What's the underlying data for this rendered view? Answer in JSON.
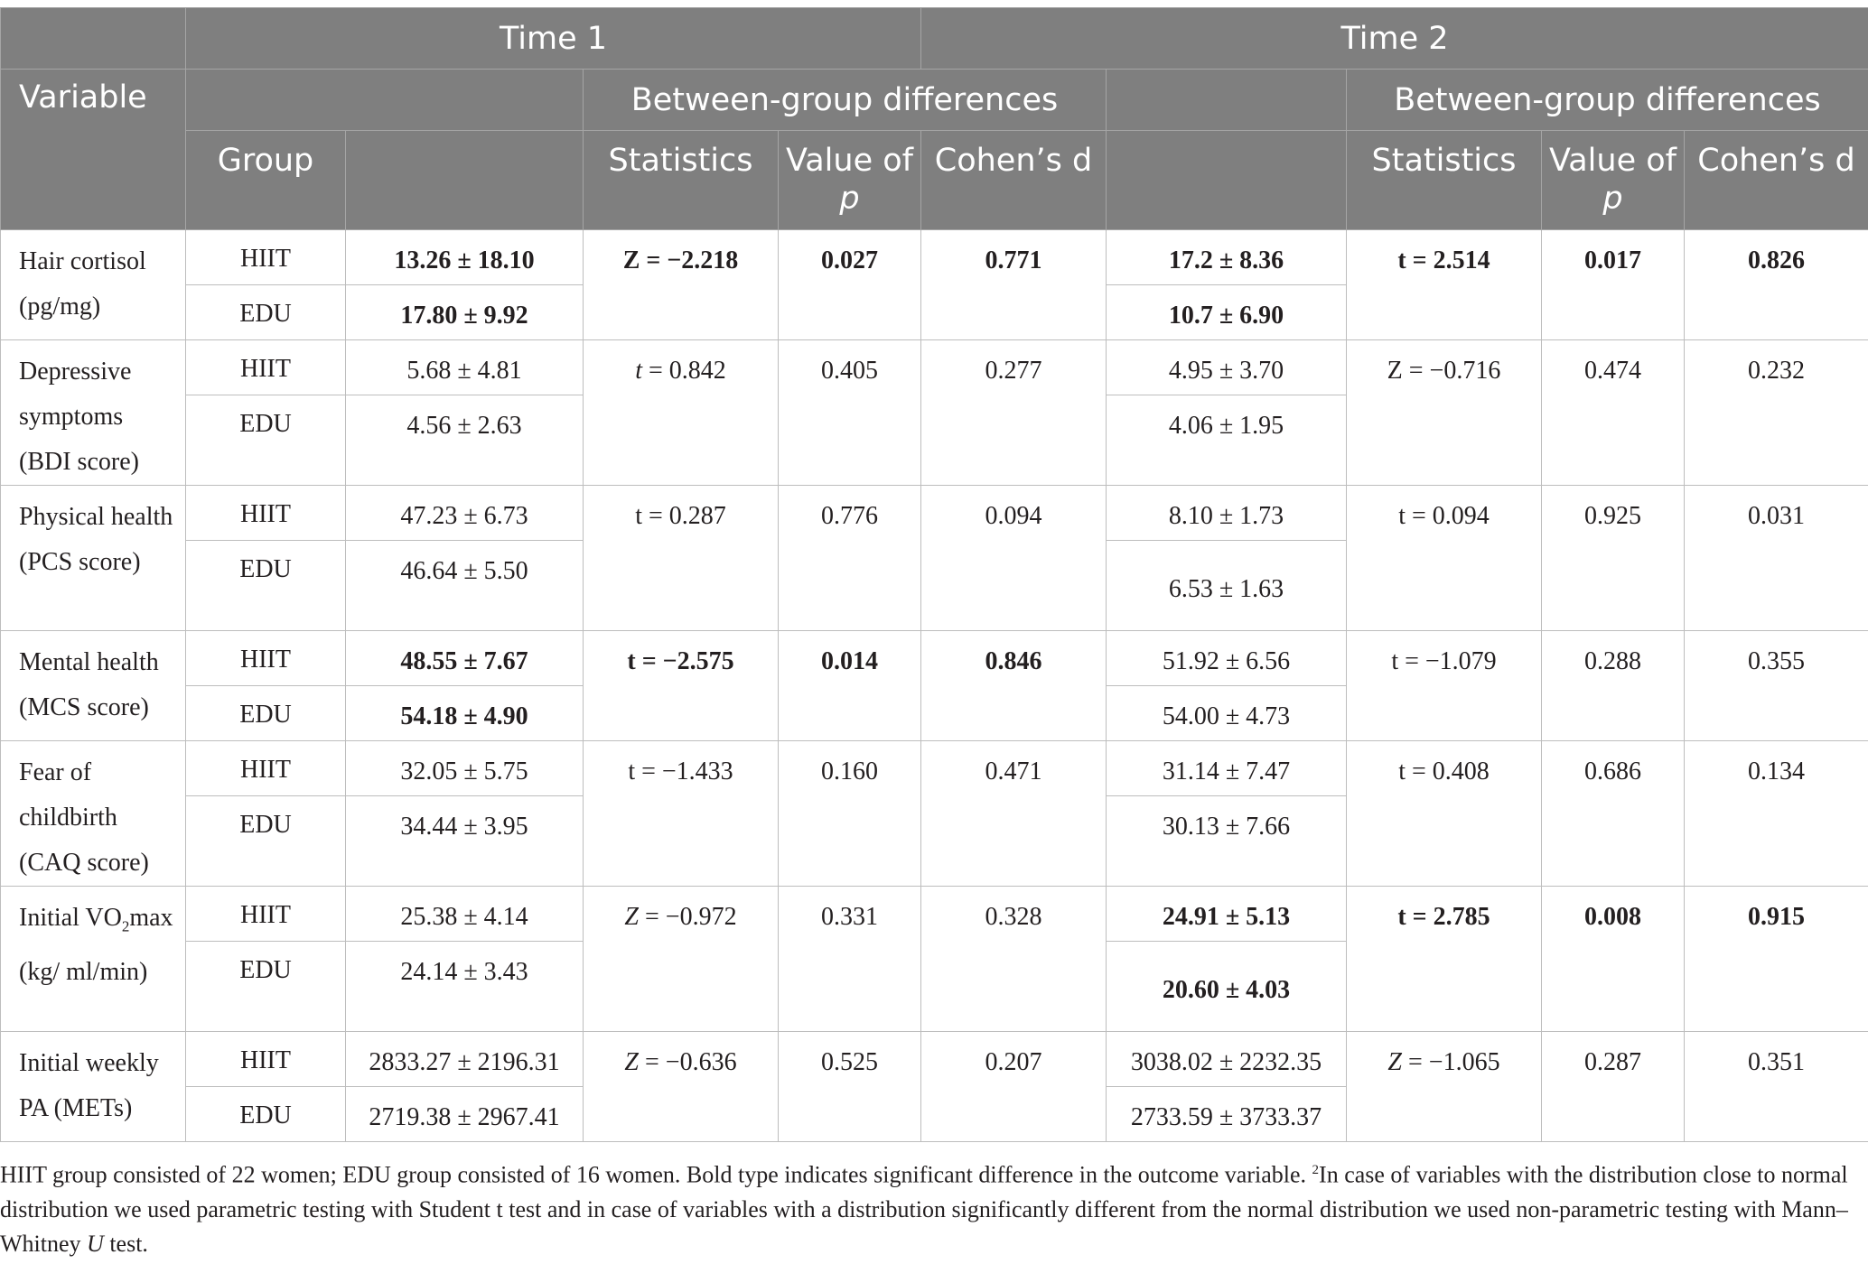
{
  "header": {
    "time1": "Time 1",
    "time2": "Time 2",
    "variable": "Variable",
    "between1": "Between-group differences",
    "between2": "Between-group differences",
    "group": "Group",
    "statistics1": "Statistics",
    "value_of": "Value of",
    "p": "p",
    "cohens1": "Cohen’s d",
    "statistics2": "Statistics",
    "cohens2": "Cohen’s d"
  },
  "rows": [
    {
      "variable": "Hair cortisol (pg/mg)",
      "g1": "HIIT",
      "g2": "EDU",
      "t1_hiit": "13.26 ± 18.10",
      "t1_edu": "17.80 ± 9.92",
      "t1_stat": "Z = −2.218",
      "t1_p": "0.027",
      "t1_d": "0.771",
      "t2_hiit": "17.2 ± 8.36",
      "t2_edu": "10.7 ± 6.90",
      "t2_stat": "t = 2.514",
      "t2_p": "0.017",
      "t2_d": "0.826"
    },
    {
      "variable": "Depressive symptoms (BDI score)",
      "g1": "HIIT",
      "g2": "EDU",
      "t1_hiit": "5.68 ± 4.81",
      "t1_edu": "4.56 ± 2.63",
      "t1_stat_pre": "t",
      "t1_stat": " = 0.842",
      "t1_p": "0.405",
      "t1_d": "0.277",
      "t2_hiit": "4.95 ± 3.70",
      "t2_edu": "4.06 ± 1.95",
      "t2_stat": "Z = −0.716",
      "t2_p": "0.474",
      "t2_d": "0.232"
    },
    {
      "variable": "Physical health (PCS score)",
      "g1": "HIIT",
      "g2": "EDU",
      "t1_hiit": "47.23 ± 6.73",
      "t1_edu": "46.64 ± 5.50",
      "t1_stat": "t = 0.287",
      "t1_p": "0.776",
      "t1_d": "0.094",
      "t2_hiit": "8.10 ± 1.73",
      "t2_edu": "6.53 ± 1.63",
      "t2_stat": "t = 0.094",
      "t2_p": "0.925",
      "t2_d": "0.031"
    },
    {
      "variable": "Mental health (MCS score)",
      "g1": "HIIT",
      "g2": "EDU",
      "t1_hiit": "48.55 ± 7.67",
      "t1_edu": "54.18 ± 4.90",
      "t1_stat": "t = −2.575",
      "t1_p": "0.014",
      "t1_d": "0.846",
      "t2_hiit": "51.92 ± 6.56",
      "t2_edu": "54.00 ± 4.73",
      "t2_stat": "t = −1.079",
      "t2_p": "0.288",
      "t2_d": "0.355"
    },
    {
      "variable": "Fear of childbirth (CAQ score)",
      "g1": "HIIT",
      "g2": "EDU",
      "t1_hiit": "32.05 ± 5.75",
      "t1_edu": "34.44 ± 3.95",
      "t1_stat": "t = −1.433",
      "t1_p": "0.160",
      "t1_d": "0.471",
      "t2_hiit": "31.14 ± 7.47",
      "t2_edu": "30.13 ± 7.66",
      "t2_stat": "t = 0.408",
      "t2_p": "0.686",
      "t2_d": "0.134"
    },
    {
      "variable_a": "Initial VO",
      "variable_sub": "2",
      "variable_b": "max (kg/ ml/min)",
      "g1": "HIIT",
      "g2": "EDU",
      "t1_hiit": "25.38 ± 4.14",
      "t1_edu": "24.14 ± 3.43",
      "t1_stat_pre": "Z",
      "t1_stat": " = −0.972",
      "t1_p": "0.331",
      "t1_d": "0.328",
      "t2_hiit": "24.91 ± 5.13",
      "t2_edu": "20.60 ± 4.03",
      "t2_stat": "t = 2.785",
      "t2_p": "0.008",
      "t2_d": "0.915"
    },
    {
      "variable": "Initial weekly PA (METs)",
      "g1": "HIIT",
      "g2": "EDU",
      "t1_hiit": "2833.27 ± 2196.31",
      "t1_edu": "2719.38 ± 2967.41",
      "t1_stat_pre": "Z",
      "t1_stat": " = −0.636",
      "t1_p": "0.525",
      "t1_d": "0.207",
      "t2_hiit": "3038.02 ± 2232.35",
      "t2_edu": "2733.59 ± 3733.37",
      "t2_stat_pre": "Z",
      "t2_stat": " = −1.065",
      "t2_p": "0.287",
      "t2_d": "0.351"
    }
  ],
  "footnote": {
    "part1": "HIIT group consisted of 22 women; EDU group consisted of 16 women. Bold type indicates significant difference in the outcome variable. ",
    "sup": "2",
    "part2": "In case of variables with the distribution close to normal distribution we used parametric testing with Student t test and in case of variables with a distribution significantly different from the normal distribution we used non-parametric testing with Mann–Whitney ",
    "u": "U",
    "part3": " test."
  }
}
